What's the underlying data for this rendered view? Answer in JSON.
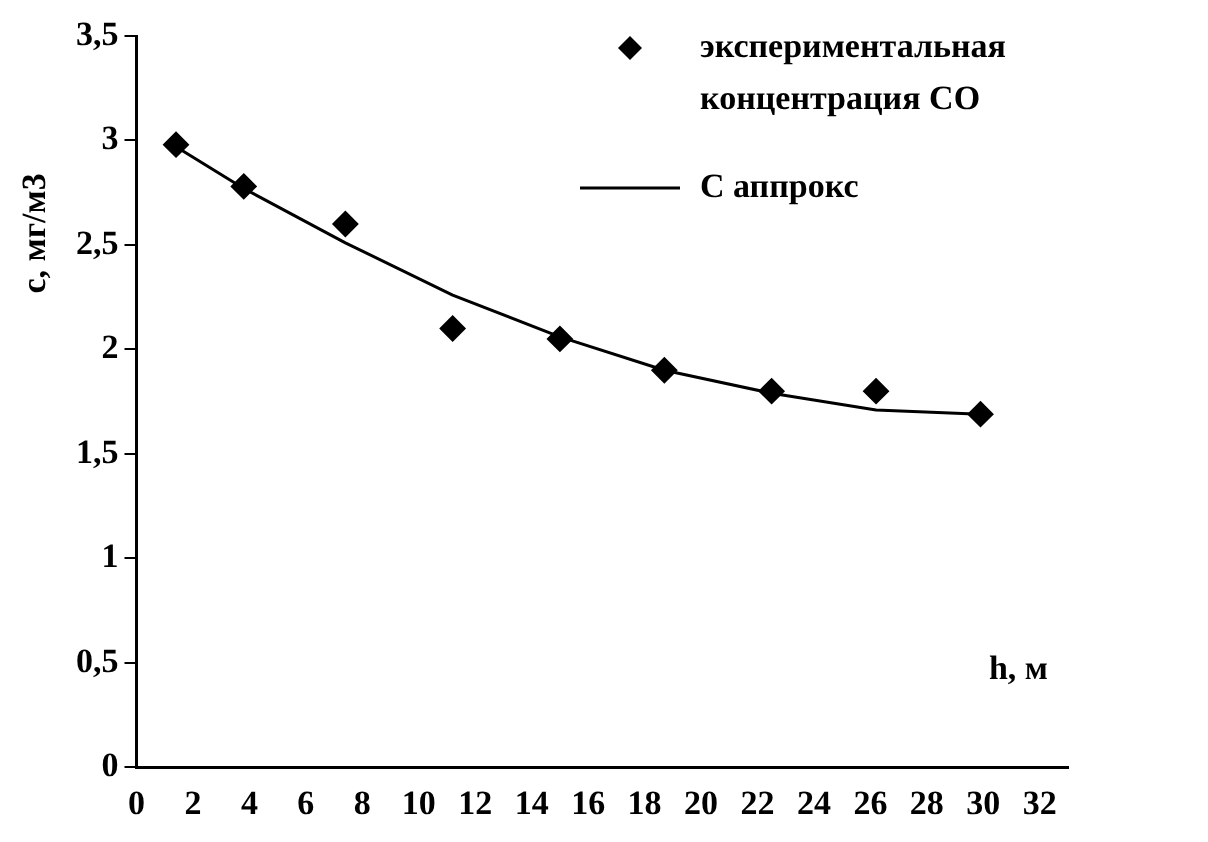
{
  "chart_data": {
    "type": "scatter",
    "xlabel": "h, м",
    "ylabel": "c, мг/м3",
    "x": [
      1.4,
      3.8,
      7.4,
      11.2,
      15,
      18.7,
      22.5,
      26.2,
      29.9
    ],
    "series": [
      {
        "name": "экспериментальная концентрация CO",
        "type": "scatter",
        "color": "#000000",
        "marker": "diamond",
        "values": [
          2.98,
          2.78,
          2.6,
          2.1,
          2.05,
          1.9,
          1.8,
          1.8,
          1.69
        ]
      },
      {
        "name": "C аппрокс",
        "type": "line",
        "color": "#000000",
        "marker": "none",
        "line_style": "solid",
        "values": [
          2.97,
          2.77,
          2.51,
          2.26,
          2.06,
          1.9,
          1.79,
          1.71,
          1.69
        ]
      }
    ],
    "xlim": [
      0,
      33
    ],
    "xticks": [
      0,
      2,
      4,
      6,
      8,
      10,
      12,
      14,
      16,
      18,
      20,
      22,
      24,
      26,
      28,
      30,
      32
    ],
    "ylim": [
      0,
      3.5
    ],
    "yticks": [
      {
        "value": 0,
        "label": "0"
      },
      {
        "value": 0.5,
        "label": "0,5"
      },
      {
        "value": 1,
        "label": "1"
      },
      {
        "value": 1.5,
        "label": "1,5"
      },
      {
        "value": 2,
        "label": "2"
      },
      {
        "value": 2.5,
        "label": "2,5"
      },
      {
        "value": 3,
        "label": "3"
      },
      {
        "value": 3.5,
        "label": "3,5"
      }
    ],
    "grid": false,
    "legend": "top right"
  }
}
